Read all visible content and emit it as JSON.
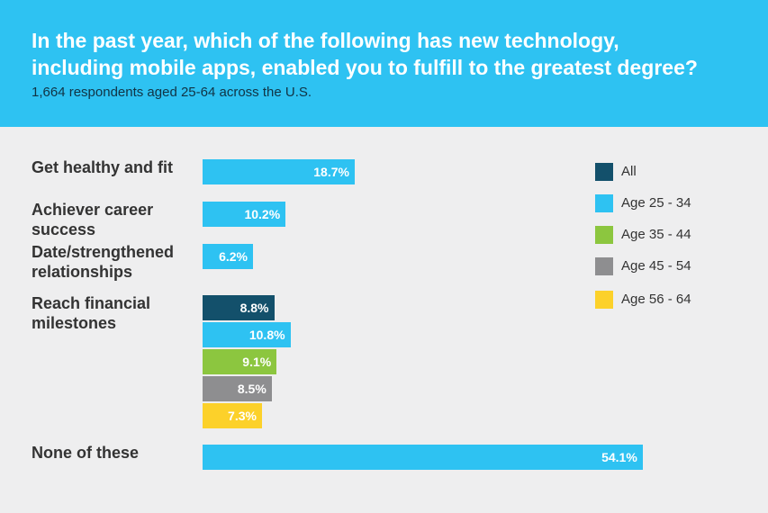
{
  "header": {
    "title_line1": "In the past year, which of the following has new technology,",
    "title_line2": "including mobile apps, enabled you to fulfill to the greatest degree?",
    "subtitle": "1,664 respondents aged 25-64 across the U.S."
  },
  "chart_data": {
    "type": "bar",
    "orientation": "horizontal",
    "unit": "%",
    "xlim": [
      0,
      60
    ],
    "categories": [
      {
        "label_lines": [
          "Get healthy and fit"
        ],
        "bars": [
          {
            "series": "Age 25 - 34",
            "value": 18.7,
            "label": "18.7%"
          }
        ]
      },
      {
        "label_lines": [
          "Achiever career",
          "success"
        ],
        "bars": [
          {
            "series": "Age 25 - 34",
            "value": 10.2,
            "label": "10.2%"
          }
        ]
      },
      {
        "label_lines": [
          "Date/strengthened",
          "relationships"
        ],
        "bars": [
          {
            "series": "Age 25 - 34",
            "value": 6.2,
            "label": "6.2%"
          }
        ]
      },
      {
        "label_lines": [
          "Reach financial",
          "milestones"
        ],
        "bars": [
          {
            "series": "All",
            "value": 8.8,
            "label": "8.8%"
          },
          {
            "series": "Age 25 - 34",
            "value": 10.8,
            "label": "10.8%"
          },
          {
            "series": "Age 35 - 44",
            "value": 9.1,
            "label": "9.1%"
          },
          {
            "series": "Age 45 - 54",
            "value": 8.5,
            "label": "8.5%"
          },
          {
            "series": "Age 56 - 64",
            "value": 7.3,
            "label": "7.3%"
          }
        ]
      },
      {
        "label_lines": [
          "None of these"
        ],
        "bars": [
          {
            "series": "Age 25 - 34",
            "value": 54.1,
            "label": "54.1%"
          }
        ]
      }
    ],
    "legend": {
      "position": "right",
      "entries": [
        {
          "name": "All",
          "color": "#13506b"
        },
        {
          "name": "Age 25 - 34",
          "color": "#2ec2f2"
        },
        {
          "name": "Age 35 - 44",
          "color": "#8cc63f"
        },
        {
          "name": "Age 45 - 54",
          "color": "#8e8e90"
        },
        {
          "name": "Age 56 - 64",
          "color": "#fcd12a"
        }
      ]
    }
  }
}
